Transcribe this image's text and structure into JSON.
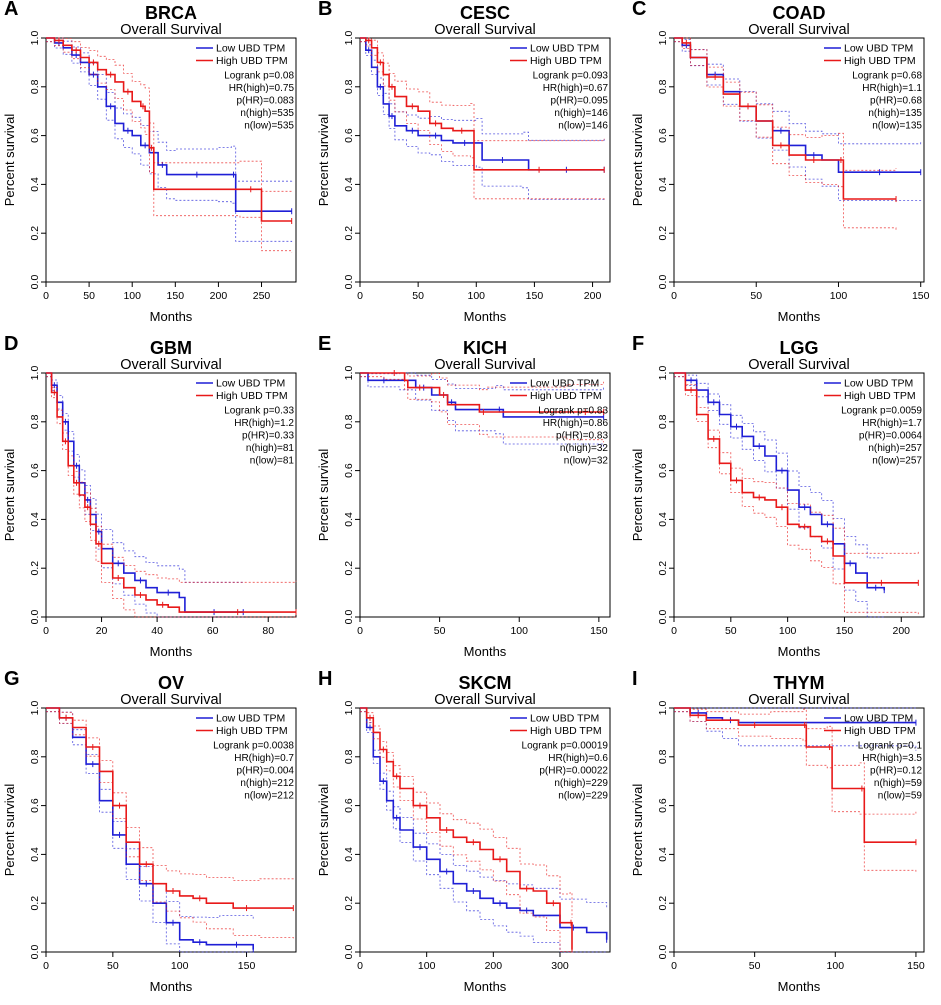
{
  "figure": {
    "colors": {
      "low": "#1f1fd6",
      "high": "#e81919"
    },
    "legend_labels": [
      "Low UBD TPM",
      "High UBD TPM"
    ],
    "subtitle": "Overall Survival",
    "xlabel": "Months",
    "ylabel": "Percent survival"
  },
  "chart_data": [
    {
      "letter": "A",
      "title": "BRCA",
      "type": "line",
      "subtitle": "Overall Survival",
      "xlabel": "Months",
      "ylabel": "Percent survival",
      "xlim": [
        0,
        290
      ],
      "xticks": [
        "0",
        "50",
        "100",
        "150",
        "200",
        "250"
      ],
      "ylim": [
        0,
        1
      ],
      "yticks": [
        "0.0",
        "0.2",
        "0.4",
        "0.6",
        "0.8",
        "1.0"
      ],
      "stats": [
        "Logrank p=0.08",
        "HR(high)=0.75",
        "p(HR)=0.083",
        "n(high)=535",
        "n(low)=535"
      ],
      "series": [
        {
          "name": "Low UBD TPM",
          "x": [
            0,
            10,
            20,
            30,
            40,
            50,
            60,
            70,
            80,
            90,
            100,
            110,
            120,
            130,
            140,
            150,
            200,
            215,
            220,
            285
          ],
          "y": [
            1,
            0.98,
            0.96,
            0.93,
            0.9,
            0.85,
            0.8,
            0.72,
            0.65,
            0.62,
            0.6,
            0.56,
            0.53,
            0.48,
            0.44,
            0.44,
            0.44,
            0.44,
            0.29,
            0.29
          ]
        },
        {
          "name": "High UBD TPM",
          "x": [
            0,
            10,
            20,
            30,
            40,
            50,
            60,
            70,
            80,
            90,
            100,
            110,
            115,
            120,
            125,
            225,
            250,
            285
          ],
          "y": [
            1,
            0.99,
            0.97,
            0.95,
            0.92,
            0.9,
            0.87,
            0.85,
            0.82,
            0.78,
            0.74,
            0.72,
            0.7,
            0.55,
            0.38,
            0.38,
            0.25,
            0.25
          ]
        }
      ]
    },
    {
      "letter": "B",
      "title": "CESC",
      "type": "line",
      "subtitle": "Overall Survival",
      "xlabel": "Months",
      "ylabel": "Percent survival",
      "xlim": [
        0,
        215
      ],
      "xticks": [
        "0",
        "50",
        "100",
        "150",
        "200"
      ],
      "ylim": [
        0,
        1
      ],
      "yticks": [
        "0.0",
        "0.2",
        "0.4",
        "0.6",
        "0.8",
        "1.0"
      ],
      "stats": [
        "Logrank p=0.093",
        "HR(high)=0.67",
        "p(HR)=0.095",
        "n(high)=146",
        "n(low)=146"
      ],
      "series": [
        {
          "name": "Low UBD TPM",
          "x": [
            0,
            5,
            10,
            15,
            20,
            25,
            30,
            40,
            50,
            60,
            70,
            80,
            100,
            105,
            140,
            145,
            210
          ],
          "y": [
            1,
            0.95,
            0.88,
            0.8,
            0.73,
            0.68,
            0.64,
            0.62,
            0.6,
            0.6,
            0.58,
            0.57,
            0.57,
            0.5,
            0.5,
            0.46,
            0.46
          ]
        },
        {
          "name": "High UBD TPM",
          "x": [
            0,
            5,
            10,
            15,
            20,
            25,
            30,
            40,
            50,
            60,
            70,
            80,
            95,
            98,
            210
          ],
          "y": [
            1,
            0.99,
            0.96,
            0.9,
            0.85,
            0.8,
            0.76,
            0.72,
            0.7,
            0.65,
            0.63,
            0.62,
            0.62,
            0.46,
            0.46
          ]
        }
      ]
    },
    {
      "letter": "C",
      "title": "COAD",
      "type": "line",
      "subtitle": "Overall Survival",
      "xlabel": "Months",
      "ylabel": "Percent survival",
      "xlim": [
        0,
        152
      ],
      "xticks": [
        "0",
        "50",
        "100",
        "150"
      ],
      "ylim": [
        0,
        1
      ],
      "yticks": [
        "0.0",
        "0.2",
        "0.4",
        "0.6",
        "0.8",
        "1.0"
      ],
      "stats": [
        "Logrank p=0.68",
        "HR(high)=1.1",
        "p(HR)=0.68",
        "n(high)=135",
        "n(low)=135"
      ],
      "series": [
        {
          "name": "Low UBD TPM",
          "x": [
            0,
            5,
            10,
            20,
            30,
            40,
            50,
            60,
            70,
            80,
            90,
            100,
            150
          ],
          "y": [
            1,
            0.97,
            0.92,
            0.85,
            0.78,
            0.72,
            0.66,
            0.62,
            0.56,
            0.52,
            0.5,
            0.45,
            0.45
          ]
        },
        {
          "name": "High UBD TPM",
          "x": [
            0,
            5,
            10,
            20,
            30,
            40,
            50,
            60,
            70,
            80,
            90,
            100,
            103,
            135
          ],
          "y": [
            1,
            0.98,
            0.92,
            0.84,
            0.77,
            0.72,
            0.66,
            0.56,
            0.52,
            0.5,
            0.5,
            0.5,
            0.34,
            0.34
          ]
        }
      ]
    },
    {
      "letter": "D",
      "title": "GBM",
      "type": "line",
      "subtitle": "Overall Survival",
      "xlabel": "Months",
      "ylabel": "Percent survival",
      "xlim": [
        0,
        90
      ],
      "xticks": [
        "0",
        "20",
        "40",
        "60",
        "80"
      ],
      "ylim": [
        0,
        1
      ],
      "yticks": [
        "0.0",
        "0.2",
        "0.4",
        "0.6",
        "0.8",
        "1.0"
      ],
      "stats": [
        "Logrank p=0.33",
        "HR(high)=1.2",
        "p(HR)=0.33",
        "n(high)=81",
        "n(low)=81"
      ],
      "series": [
        {
          "name": "Low UBD TPM",
          "x": [
            0,
            2,
            4,
            6,
            8,
            10,
            12,
            14,
            16,
            18,
            20,
            24,
            28,
            32,
            36,
            40,
            48,
            50,
            71
          ],
          "y": [
            1,
            0.95,
            0.88,
            0.8,
            0.72,
            0.62,
            0.55,
            0.48,
            0.42,
            0.35,
            0.28,
            0.22,
            0.18,
            0.15,
            0.12,
            0.1,
            0.08,
            0.02,
            0.02
          ]
        },
        {
          "name": "High UBD TPM",
          "x": [
            0,
            2,
            4,
            6,
            8,
            10,
            12,
            14,
            16,
            18,
            20,
            24,
            28,
            32,
            36,
            40,
            44,
            48,
            90
          ],
          "y": [
            1,
            0.92,
            0.82,
            0.72,
            0.62,
            0.55,
            0.5,
            0.45,
            0.38,
            0.3,
            0.22,
            0.16,
            0.12,
            0.09,
            0.07,
            0.05,
            0.04,
            0.02,
            0.02
          ]
        }
      ]
    },
    {
      "letter": "E",
      "title": "KICH",
      "type": "line",
      "subtitle": "Overall Survival",
      "xlabel": "Months",
      "ylabel": "Percent survival",
      "xlim": [
        0,
        157
      ],
      "xticks": [
        "0",
        "50",
        "100",
        "150"
      ],
      "ylim": [
        0,
        1
      ],
      "yticks": [
        "0.0",
        "0.2",
        "0.4",
        "0.6",
        "0.8",
        "1.0"
      ],
      "stats": [
        "Logrank p=0.83",
        "HR(high)=0.86",
        "p(HR)=0.83",
        "n(high)=32",
        "n(low)=32"
      ],
      "series": [
        {
          "name": "Low UBD TPM",
          "x": [
            0,
            5,
            25,
            35,
            45,
            55,
            60,
            85,
            90,
            153
          ],
          "y": [
            1,
            0.97,
            0.97,
            0.94,
            0.91,
            0.88,
            0.85,
            0.85,
            0.82,
            0.82
          ]
        },
        {
          "name": "High UBD TPM",
          "x": [
            0,
            15,
            28,
            30,
            45,
            50,
            55,
            75,
            80,
            130,
            153
          ],
          "y": [
            1,
            1,
            0.97,
            0.94,
            0.94,
            0.91,
            0.87,
            0.84,
            0.84,
            0.84,
            0.84
          ]
        }
      ]
    },
    {
      "letter": "F",
      "title": "LGG",
      "type": "line",
      "subtitle": "Overall Survival",
      "xlabel": "Months",
      "ylabel": "Percent survival",
      "xlim": [
        0,
        220
      ],
      "xticks": [
        "0",
        "50",
        "100",
        "150",
        "200"
      ],
      "ylim": [
        0,
        1
      ],
      "yticks": [
        "0.0",
        "0.2",
        "0.4",
        "0.6",
        "0.8",
        "1.0"
      ],
      "stats": [
        "Logrank p=0.0059",
        "HR(high)=1.7",
        "p(HR)=0.0064",
        "n(high)=257",
        "n(low)=257"
      ],
      "series": [
        {
          "name": "Low UBD TPM",
          "x": [
            0,
            10,
            20,
            30,
            40,
            50,
            60,
            70,
            80,
            90,
            100,
            110,
            120,
            130,
            140,
            150,
            160,
            170,
            185
          ],
          "y": [
            1,
            0.97,
            0.93,
            0.88,
            0.83,
            0.78,
            0.74,
            0.7,
            0.66,
            0.6,
            0.52,
            0.45,
            0.42,
            0.38,
            0.3,
            0.22,
            0.18,
            0.12,
            0.11
          ]
        },
        {
          "name": "High UBD TPM",
          "x": [
            0,
            10,
            20,
            30,
            40,
            50,
            60,
            70,
            80,
            90,
            100,
            110,
            120,
            130,
            140,
            150,
            215
          ],
          "y": [
            1,
            0.93,
            0.83,
            0.73,
            0.63,
            0.56,
            0.51,
            0.49,
            0.48,
            0.45,
            0.38,
            0.37,
            0.33,
            0.31,
            0.25,
            0.14,
            0.14
          ]
        }
      ]
    },
    {
      "letter": "G",
      "title": "OV",
      "type": "line",
      "subtitle": "Overall Survival",
      "xlabel": "Months",
      "ylabel": "Percent survival",
      "xlim": [
        0,
        187
      ],
      "xticks": [
        "0",
        "50",
        "100",
        "150"
      ],
      "ylim": [
        0,
        1
      ],
      "yticks": [
        "0.0",
        "0.2",
        "0.4",
        "0.6",
        "0.8",
        "1.0"
      ],
      "stats": [
        "Logrank p=0.0038",
        "HR(high)=0.7",
        "p(HR)=0.004",
        "n(high)=212",
        "n(low)=212"
      ],
      "series": [
        {
          "name": "Low UBD TPM",
          "x": [
            0,
            10,
            20,
            30,
            40,
            50,
            60,
            70,
            80,
            90,
            100,
            110,
            120,
            130,
            155
          ],
          "y": [
            1,
            0.96,
            0.88,
            0.77,
            0.62,
            0.48,
            0.36,
            0.28,
            0.2,
            0.12,
            0.05,
            0.04,
            0.03,
            0.03,
            0.01
          ]
        },
        {
          "name": "High UBD TPM",
          "x": [
            0,
            10,
            20,
            30,
            40,
            50,
            60,
            70,
            80,
            90,
            100,
            110,
            120,
            140,
            160,
            185
          ],
          "y": [
            1,
            0.96,
            0.92,
            0.84,
            0.74,
            0.6,
            0.45,
            0.36,
            0.28,
            0.25,
            0.23,
            0.22,
            0.2,
            0.18,
            0.18,
            0.18
          ]
        }
      ]
    },
    {
      "letter": "H",
      "title": "SKCM",
      "type": "line",
      "subtitle": "Overall Survival",
      "xlabel": "Months",
      "ylabel": "Percent survival",
      "xlim": [
        0,
        375
      ],
      "xticks": [
        "0",
        "100",
        "200",
        "300"
      ],
      "ylim": [
        0,
        1
      ],
      "yticks": [
        "0.0",
        "0.2",
        "0.4",
        "0.6",
        "0.8",
        "1.0"
      ],
      "stats": [
        "Logrank p=0.00019",
        "HR(high)=0.6",
        "p(HR)=0.00022",
        "n(high)=229",
        "n(low)=229"
      ],
      "series": [
        {
          "name": "Low UBD TPM",
          "x": [
            0,
            10,
            20,
            30,
            40,
            50,
            60,
            80,
            100,
            120,
            140,
            160,
            180,
            200,
            220,
            240,
            260,
            300,
            340,
            370
          ],
          "y": [
            1,
            0.92,
            0.8,
            0.7,
            0.62,
            0.55,
            0.5,
            0.43,
            0.38,
            0.33,
            0.28,
            0.25,
            0.22,
            0.2,
            0.18,
            0.17,
            0.15,
            0.1,
            0.08,
            0.05
          ]
        },
        {
          "name": "High UBD TPM",
          "x": [
            0,
            10,
            20,
            30,
            40,
            50,
            60,
            80,
            100,
            120,
            140,
            160,
            180,
            200,
            220,
            240,
            260,
            280,
            300,
            315,
            318
          ],
          "y": [
            1,
            0.96,
            0.9,
            0.83,
            0.78,
            0.72,
            0.67,
            0.6,
            0.55,
            0.5,
            0.47,
            0.45,
            0.42,
            0.38,
            0.33,
            0.26,
            0.25,
            0.2,
            0.12,
            0.12,
            0.01
          ]
        }
      ]
    },
    {
      "letter": "I",
      "title": "THYM",
      "type": "line",
      "subtitle": "Overall Survival",
      "xlabel": "Months",
      "ylabel": "Percent survival",
      "xlim": [
        0,
        155
      ],
      "xticks": [
        "0",
        "50",
        "100",
        "150"
      ],
      "ylim": [
        0,
        1
      ],
      "yticks": [
        "0.0",
        "0.2",
        "0.4",
        "0.6",
        "0.8",
        "1.0"
      ],
      "stats": [
        "Logrank p=0.1",
        "HR(high)=3.5",
        "p(HR)=0.12",
        "n(high)=59",
        "n(low)=59"
      ],
      "series": [
        {
          "name": "Low UBD TPM",
          "x": [
            0,
            10,
            20,
            30,
            40,
            150
          ],
          "y": [
            1,
            0.98,
            0.96,
            0.95,
            0.94,
            0.94
          ]
        },
        {
          "name": "High UBD TPM",
          "x": [
            0,
            10,
            20,
            40,
            60,
            80,
            82,
            95,
            98,
            115,
            118,
            150
          ],
          "y": [
            1,
            0.97,
            0.95,
            0.93,
            0.93,
            0.93,
            0.84,
            0.84,
            0.67,
            0.67,
            0.45,
            0.45
          ]
        }
      ]
    }
  ]
}
